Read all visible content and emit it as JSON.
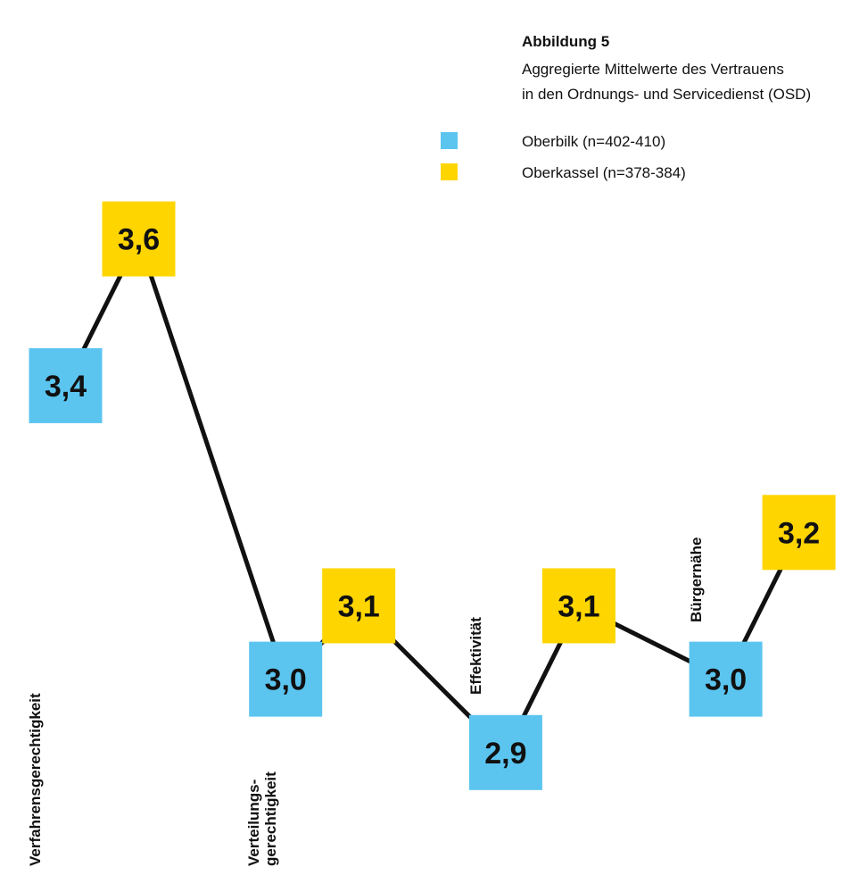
{
  "chart_data": {
    "type": "line",
    "title": "Abbildung 5",
    "subtitle": [
      "Aggregierte Mittelwerte des Vertrauens",
      "in den Ordnungs- und Servicedienst (OSD)"
    ],
    "categories": [
      "Verfahrensgerechtigkeit",
      "Verteilungs-\ngerechtigkeit",
      "Effektivität",
      "Bürgernähe"
    ],
    "series": [
      {
        "name": "Oberbilk (n=402-410)",
        "color": "#5bc5f0",
        "values": [
          3.4,
          3.0,
          2.9,
          3.0
        ],
        "value_labels": [
          "3,4",
          "3,0",
          "2,9",
          "3,0"
        ]
      },
      {
        "name": "Oberkassel (n=378-384)",
        "color": "#ffd500",
        "values": [
          3.6,
          3.1,
          3.1,
          3.2
        ],
        "value_labels": [
          "3,6",
          "3,1",
          "3,1",
          "3,2"
        ]
      }
    ],
    "ylim": [
      2.8,
      3.7
    ]
  }
}
